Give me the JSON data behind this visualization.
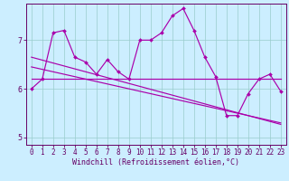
{
  "x_data": [
    0,
    1,
    2,
    3,
    4,
    5,
    6,
    7,
    8,
    9,
    10,
    11,
    12,
    13,
    14,
    15,
    16,
    17,
    18,
    19,
    20,
    21,
    22,
    23
  ],
  "y_main": [
    6.0,
    6.2,
    7.15,
    7.2,
    6.65,
    6.55,
    6.3,
    6.6,
    6.35,
    6.2,
    7.0,
    7.0,
    7.15,
    7.5,
    7.65,
    7.2,
    6.65,
    6.25,
    5.45,
    5.45,
    5.9,
    6.2,
    6.3,
    5.95
  ],
  "y_trend1": [
    6.65,
    6.59,
    6.53,
    6.47,
    6.41,
    6.35,
    6.29,
    6.23,
    6.17,
    6.11,
    6.05,
    5.99,
    5.93,
    5.87,
    5.81,
    5.75,
    5.69,
    5.63,
    5.57,
    5.51,
    5.45,
    5.39,
    5.33,
    5.27
  ],
  "y_trend2": [
    6.45,
    6.4,
    6.35,
    6.3,
    6.25,
    6.2,
    6.15,
    6.1,
    6.05,
    6.0,
    5.95,
    5.9,
    5.85,
    5.8,
    5.75,
    5.7,
    5.65,
    5.6,
    5.55,
    5.5,
    5.45,
    5.4,
    5.35,
    5.3
  ],
  "y_flat": [
    6.2,
    6.2,
    6.2,
    6.2,
    6.2,
    6.2,
    6.2,
    6.2,
    6.2,
    6.2,
    6.2,
    6.2,
    6.2,
    6.2,
    6.2,
    6.2,
    6.2,
    6.2,
    6.2,
    6.2,
    6.2,
    6.2,
    6.2,
    6.2
  ],
  "background_color": "#cceeff",
  "line_color": "#aa00aa",
  "grid_color": "#99cccc",
  "tick_color": "#660066",
  "xlabel": "Windchill (Refroidissement éolien,°C)",
  "xlim": [
    -0.5,
    23.5
  ],
  "ylim": [
    4.85,
    7.75
  ],
  "yticks": [
    5,
    6,
    7
  ],
  "xticks": [
    0,
    1,
    2,
    3,
    4,
    5,
    6,
    7,
    8,
    9,
    10,
    11,
    12,
    13,
    14,
    15,
    16,
    17,
    18,
    19,
    20,
    21,
    22,
    23
  ],
  "label_fontsize": 6.0,
  "tick_fontsize": 5.5
}
